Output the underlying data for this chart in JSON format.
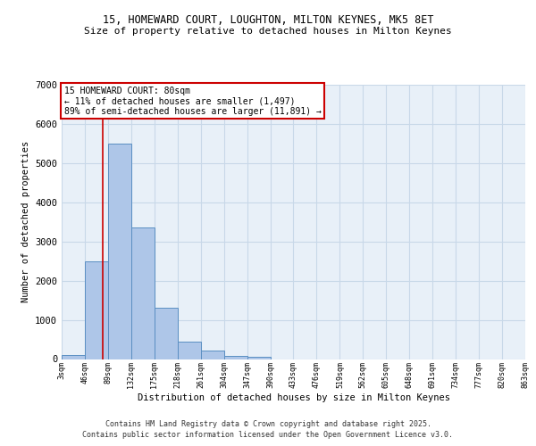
{
  "title_line1": "15, HOMEWARD COURT, LOUGHTON, MILTON KEYNES, MK5 8ET",
  "title_line2": "Size of property relative to detached houses in Milton Keynes",
  "xlabel": "Distribution of detached houses by size in Milton Keynes",
  "ylabel": "Number of detached properties",
  "bar_edges": [
    3,
    46,
    89,
    132,
    175,
    218,
    261,
    304,
    347,
    390,
    433,
    476,
    519,
    562,
    605,
    648,
    691,
    734,
    777,
    820,
    863
  ],
  "bar_heights": [
    100,
    2500,
    5500,
    3350,
    1300,
    450,
    220,
    90,
    60,
    0,
    0,
    0,
    0,
    0,
    0,
    0,
    0,
    0,
    0,
    0
  ],
  "bar_color": "#aec6e8",
  "bar_edge_color": "#5a8fc2",
  "bar_linewidth": 0.7,
  "property_size": 80,
  "vline_color": "#cc0000",
  "vline_linewidth": 1.2,
  "annotation_title": "15 HOMEWARD COURT: 80sqm",
  "annotation_line1": "← 11% of detached houses are smaller (1,497)",
  "annotation_line2": "89% of semi-detached houses are larger (11,891) →",
  "annotation_box_color": "#cc0000",
  "annotation_fill": "#ffffff",
  "ylim": [
    0,
    7000
  ],
  "yticks": [
    0,
    1000,
    2000,
    3000,
    4000,
    5000,
    6000,
    7000
  ],
  "bg_color": "#ffffff",
  "plot_bg_color": "#e8f0f8",
  "grid_color": "#c8d8e8",
  "footer_line1": "Contains HM Land Registry data © Crown copyright and database right 2025.",
  "footer_line2": "Contains public sector information licensed under the Open Government Licence v3.0.",
  "tick_labels": [
    "3sqm",
    "46sqm",
    "89sqm",
    "132sqm",
    "175sqm",
    "218sqm",
    "261sqm",
    "304sqm",
    "347sqm",
    "390sqm",
    "433sqm",
    "476sqm",
    "519sqm",
    "562sqm",
    "605sqm",
    "648sqm",
    "691sqm",
    "734sqm",
    "777sqm",
    "820sqm",
    "863sqm"
  ]
}
